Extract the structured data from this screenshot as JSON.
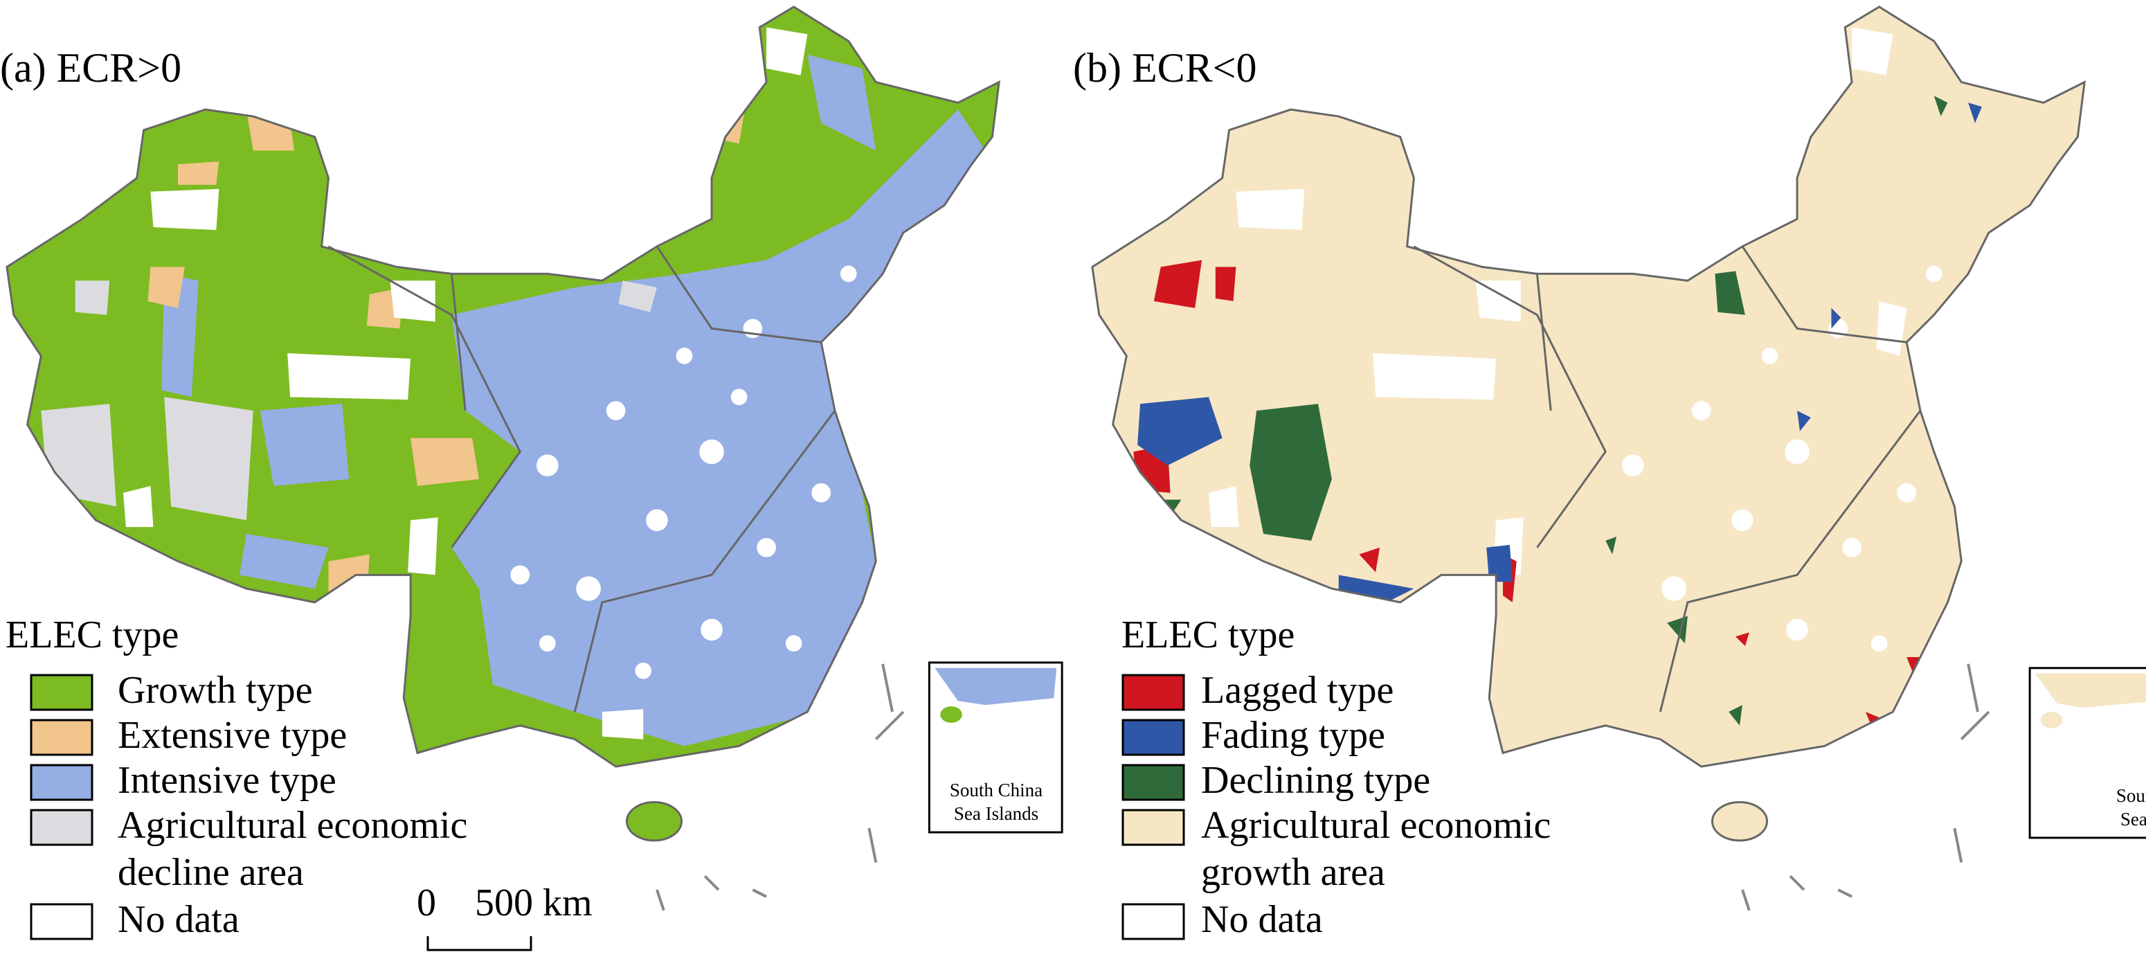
{
  "panels": [
    {
      "title": "(a)  ECR>0",
      "legend": {
        "title": "ELEC type",
        "items": [
          {
            "label": "Growth type",
            "color": "#7dbb22"
          },
          {
            "label": "Extensive type",
            "color": "#f2c58c"
          },
          {
            "label": "Intensive type",
            "color": "#95aee4"
          },
          {
            "label": [
              "Agricultural economic",
              "decline area"
            ],
            "color": "#dcdce0"
          },
          {
            "label": "No data",
            "color": "#ffffff"
          }
        ]
      },
      "inset_label": [
        "South China",
        "Sea Islands"
      ]
    },
    {
      "title": "(b)  ECR<0",
      "legend": {
        "title": "ELEC type",
        "items": [
          {
            "label": "Lagged type",
            "color": "#d0161e"
          },
          {
            "label": "Fading type",
            "color": "#2f57a8"
          },
          {
            "label": "Declining type",
            "color": "#2f6b3a"
          },
          {
            "label": [
              "Agricultural economic",
              "growth area"
            ],
            "color": "#f6e6c4"
          },
          {
            "label": "No data",
            "color": "#ffffff"
          }
        ]
      },
      "inset_label": [
        "South China",
        "Sea Islands"
      ]
    }
  ],
  "scale_bar": {
    "labels": [
      "0",
      "500 km"
    ]
  }
}
